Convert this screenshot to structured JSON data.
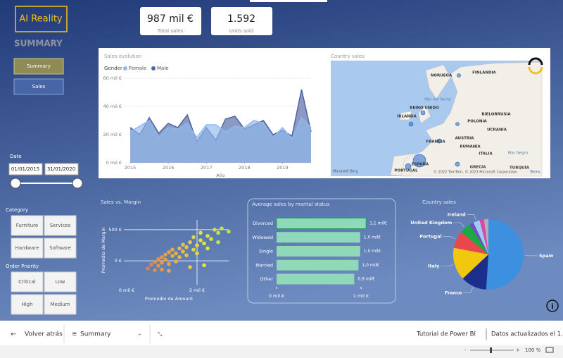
{
  "logo": "AI Reality",
  "kpis": [
    {
      "value": "987 mil €",
      "label": "Total sales"
    },
    {
      "value": "1.592",
      "label": "Units sold"
    }
  ],
  "page_title": "SUMMARY",
  "nav": [
    "Summary",
    "Sales"
  ],
  "date_filter": {
    "label": "Date",
    "start": "01/01/2015",
    "end": "31/01/2020"
  },
  "category_filter": {
    "label": "Category",
    "options": [
      "Furniture",
      "Services",
      "Hardware",
      "Software"
    ]
  },
  "priority_filter": {
    "label": "Order Priority",
    "options": [
      "Critical",
      "Low",
      "High",
      "Medium"
    ]
  },
  "map": {
    "title": "Country sales",
    "labels": [
      "NORUEGA",
      "FINLANDIA",
      "Mar del Norte",
      "REINO UNIDO",
      "IRLANDA",
      "BIELORRUSIA",
      "POLONIA",
      "UCRANIA",
      "FRANCIA",
      "AUSTRIA",
      "RUMANÍA",
      "ITALIA",
      "Mar Negro",
      "ESPAÑA",
      "PORTUGAL",
      "GRECIA",
      "TURQUÍA"
    ],
    "credits": [
      "Microsoft Bing",
      "© 2022 TomTom, © 2023 Microsoft Corporation",
      "Terms"
    ]
  },
  "chart_data": [
    {
      "type": "area",
      "title": "Sales evolution",
      "legend_title": "Gender",
      "x_label": "Año",
      "x": [
        2015,
        2015.25,
        2015.5,
        2015.75,
        2016,
        2016.25,
        2016.5,
        2016.75,
        2017,
        2017.25,
        2017.5,
        2017.75,
        2018,
        2018.25,
        2018.5,
        2018.75,
        2019,
        2019.25,
        2019.5,
        2019.75
      ],
      "xlim": [
        2015,
        2019.75
      ],
      "xticks": [
        2015,
        2016,
        2017,
        2018,
        2019
      ],
      "ylim": [
        0,
        60
      ],
      "yticks": [
        {
          "value": 0,
          "label": "0 mil €"
        },
        {
          "value": 20,
          "label": "20 mil €"
        },
        {
          "value": 40,
          "label": "40 mil €"
        },
        {
          "value": 60,
          "label": "60 mil €"
        }
      ],
      "grid": true,
      "series": [
        {
          "name": "Male",
          "color": "#4e64a3",
          "values": [
            25,
            20,
            32,
            21,
            28,
            25,
            34,
            15,
            25,
            16,
            31,
            33,
            24,
            27,
            30,
            20,
            23,
            19,
            52,
            22
          ]
        },
        {
          "name": "Female",
          "color": "#8fb8ec",
          "values": [
            22,
            26,
            30,
            18,
            25,
            24,
            28,
            18,
            27,
            27,
            22,
            26,
            25,
            30,
            28,
            18,
            25,
            17,
            32,
            25
          ]
        }
      ]
    },
    {
      "type": "scatter",
      "title": "Sales vs. Margin",
      "x_label": "Promedio de Amount",
      "y_label": "Promedio de Margin",
      "x": [
        0.6,
        0.7,
        0.8,
        0.9,
        0.9,
        1.0,
        1.0,
        1.1,
        1.1,
        1.2,
        1.2,
        1.3,
        1.3,
        1.4,
        1.4,
        1.5,
        1.5,
        1.6,
        1.6,
        1.7,
        1.7,
        1.8,
        1.8,
        1.9,
        1.9,
        2.0,
        2.0,
        2.1,
        2.1,
        2.2,
        2.2,
        2.3,
        2.3,
        2.4,
        2.5,
        2.6,
        2.6,
        2.7,
        1.0,
        1.2,
        0.8,
        2.9
      ],
      "values": [
        -120,
        -60,
        -20,
        30,
        -80,
        60,
        -30,
        100,
        20,
        140,
        -50,
        80,
        180,
        120,
        -10,
        200,
        60,
        150,
        260,
        90,
        220,
        300,
        -100,
        180,
        380,
        250,
        120,
        330,
        450,
        280,
        -70,
        400,
        200,
        350,
        500,
        300,
        450,
        520,
        -140,
        -160,
        -150,
        470
      ],
      "xlim": [
        -0.6,
        3.0
      ],
      "xticks": [
        {
          "value": 0,
          "label": "0 mil €"
        },
        {
          "value": 2,
          "label": "2 mil €"
        }
      ],
      "ylim": [
        -450,
        680
      ],
      "yticks": [
        {
          "value": 0,
          "label": "0 €"
        },
        {
          "value": 500,
          "label": "500 €"
        }
      ],
      "grid": true
    },
    {
      "type": "hbar",
      "title": "Average sales by marital status",
      "color": "#8fd9b9",
      "categories": [
        "Divorced",
        "Widowed",
        "Single",
        "Married",
        "Other"
      ],
      "values": [
        1.06,
        0.99,
        0.99,
        0.97,
        0.92
      ],
      "value_labels": [
        "1,1 mil€",
        "1,0 mil€",
        "1,0 mil€",
        "1,0 mil€",
        "0,9 mil€"
      ],
      "xlim": [
        0,
        1.1
      ],
      "xticks": [
        {
          "value": 0,
          "label": "0 mil €"
        },
        {
          "value": 1,
          "label": "1 mil €"
        }
      ]
    },
    {
      "type": "pie",
      "title": "Country sales",
      "categories": [
        "Spain",
        "France",
        "Italy",
        "Portugal",
        "United Kingdom",
        null,
        "Ireland",
        null,
        null
      ],
      "values": [
        51,
        12,
        15,
        8,
        5,
        2,
        3,
        2,
        2
      ],
      "colors": [
        "#3d8fe0",
        "#1b2e8c",
        "#f2c80f",
        "#e8484d",
        "#1aab40",
        "#744ec2",
        "#9ecbf2",
        "#e044a7",
        "#b0b0b8"
      ]
    }
  ],
  "footer": {
    "back": "Volver atrás",
    "page": "Summary",
    "tutorial": "Tutorial de Power BI",
    "updated": "Datos actualizados el 1...",
    "zoom": "100 %"
  }
}
